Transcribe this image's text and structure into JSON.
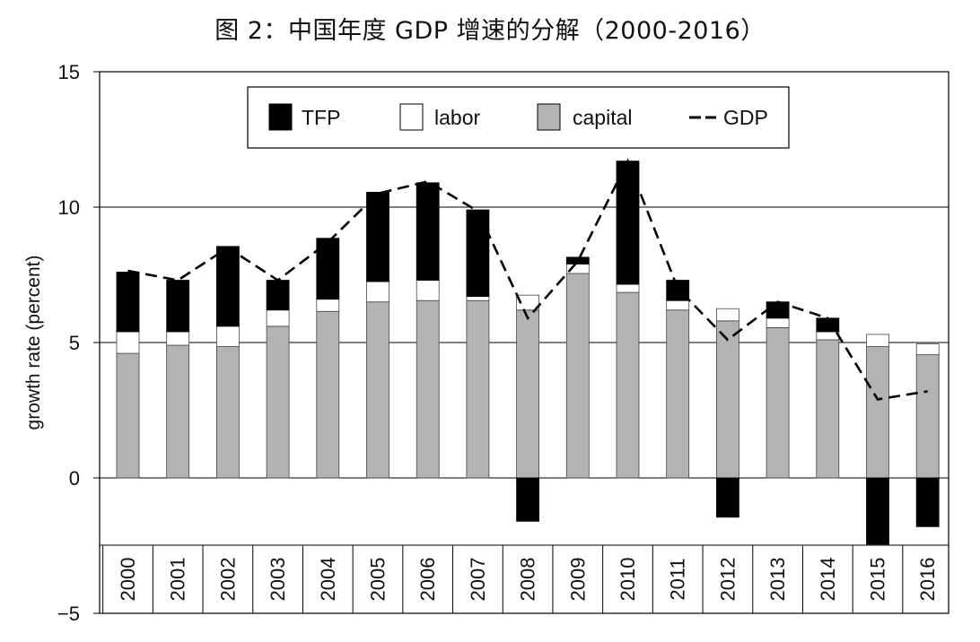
{
  "page": {
    "title": "图 2：中国年度 GDP 增速的分解（2000-2016）"
  },
  "chart_data": {
    "type": "bar",
    "stacking": "stacked",
    "title": "图 2：中国年度 GDP 增速的分解（2000-2016）",
    "xlabel": "",
    "ylabel": "growth rate (percent)",
    "ylim": [
      -5,
      15
    ],
    "yticks": [
      15,
      10,
      5,
      0,
      -5
    ],
    "yticks_labels": [
      "15",
      "10",
      "5",
      "0",
      "−5"
    ],
    "grid": true,
    "legend_position": "top",
    "categories": [
      "2000",
      "2001",
      "2002",
      "2003",
      "2004",
      "2005",
      "2006",
      "2007",
      "2008",
      "2009",
      "2010",
      "2011",
      "2012",
      "2013",
      "2014",
      "2015",
      "2016"
    ],
    "series": [
      {
        "name": "capital",
        "kind": "bar",
        "color": "#b3b3b3",
        "values": [
          4.6,
          4.9,
          4.85,
          5.6,
          6.15,
          6.5,
          6.55,
          6.55,
          6.2,
          7.55,
          6.85,
          6.2,
          5.8,
          5.55,
          5.1,
          4.85,
          4.55
        ]
      },
      {
        "name": "labor",
        "kind": "bar",
        "color": "#ffffff",
        "values": [
          0.8,
          0.5,
          0.75,
          0.6,
          0.45,
          0.75,
          0.75,
          0.15,
          0.55,
          0.35,
          0.3,
          0.35,
          0.45,
          0.35,
          0.3,
          0.45,
          0.4
        ]
      },
      {
        "name": "TFP",
        "kind": "bar",
        "color": "#000000",
        "values": [
          2.2,
          1.9,
          2.95,
          1.1,
          2.25,
          3.3,
          3.6,
          3.2,
          -1.6,
          0.25,
          4.55,
          0.75,
          -1.45,
          0.6,
          0.5,
          -2.45,
          -1.8
        ]
      },
      {
        "name": "GDP",
        "kind": "line",
        "style": "dashed",
        "color": "#000000",
        "values": [
          7.65,
          7.3,
          8.5,
          7.3,
          8.7,
          10.5,
          10.95,
          9.85,
          5.9,
          8.0,
          11.7,
          7.0,
          5.1,
          6.5,
          5.9,
          2.9,
          3.2
        ]
      }
    ],
    "legend": [
      "TFP",
      "labor",
      "capital",
      "GDP"
    ]
  }
}
